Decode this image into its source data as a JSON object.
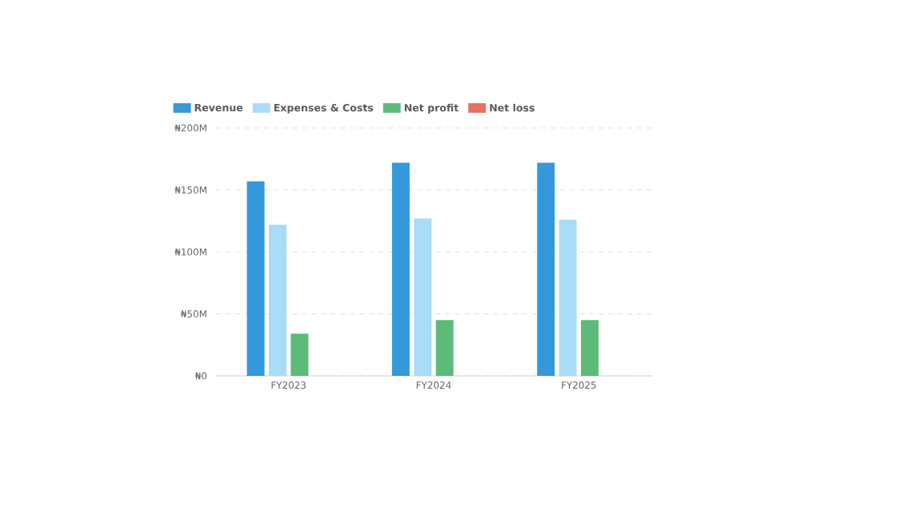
{
  "chart_data": {
    "type": "bar",
    "categories": [
      "FY2023",
      "FY2024",
      "FY2025"
    ],
    "series": [
      {
        "name": "Revenue",
        "color": "#3498db",
        "values": [
          157,
          172,
          172
        ]
      },
      {
        "name": "Expenses & Costs",
        "color": "#a9dcf7",
        "values": [
          122,
          127,
          126
        ]
      },
      {
        "name": "Net profit",
        "color": "#5dbb7a",
        "values": [
          34,
          45,
          45
        ]
      },
      {
        "name": "Net loss",
        "color": "#e8705f",
        "values": [
          null,
          null,
          null
        ]
      }
    ],
    "ylim": [
      0,
      200
    ],
    "yticks": [
      {
        "value": 0,
        "label": "₦0"
      },
      {
        "value": 50,
        "label": "₦50M"
      },
      {
        "value": 100,
        "label": "₦100M"
      },
      {
        "value": 150,
        "label": "₦150M"
      },
      {
        "value": 200,
        "label": "₦200M"
      }
    ],
    "grid": "y",
    "legend": "top left"
  }
}
